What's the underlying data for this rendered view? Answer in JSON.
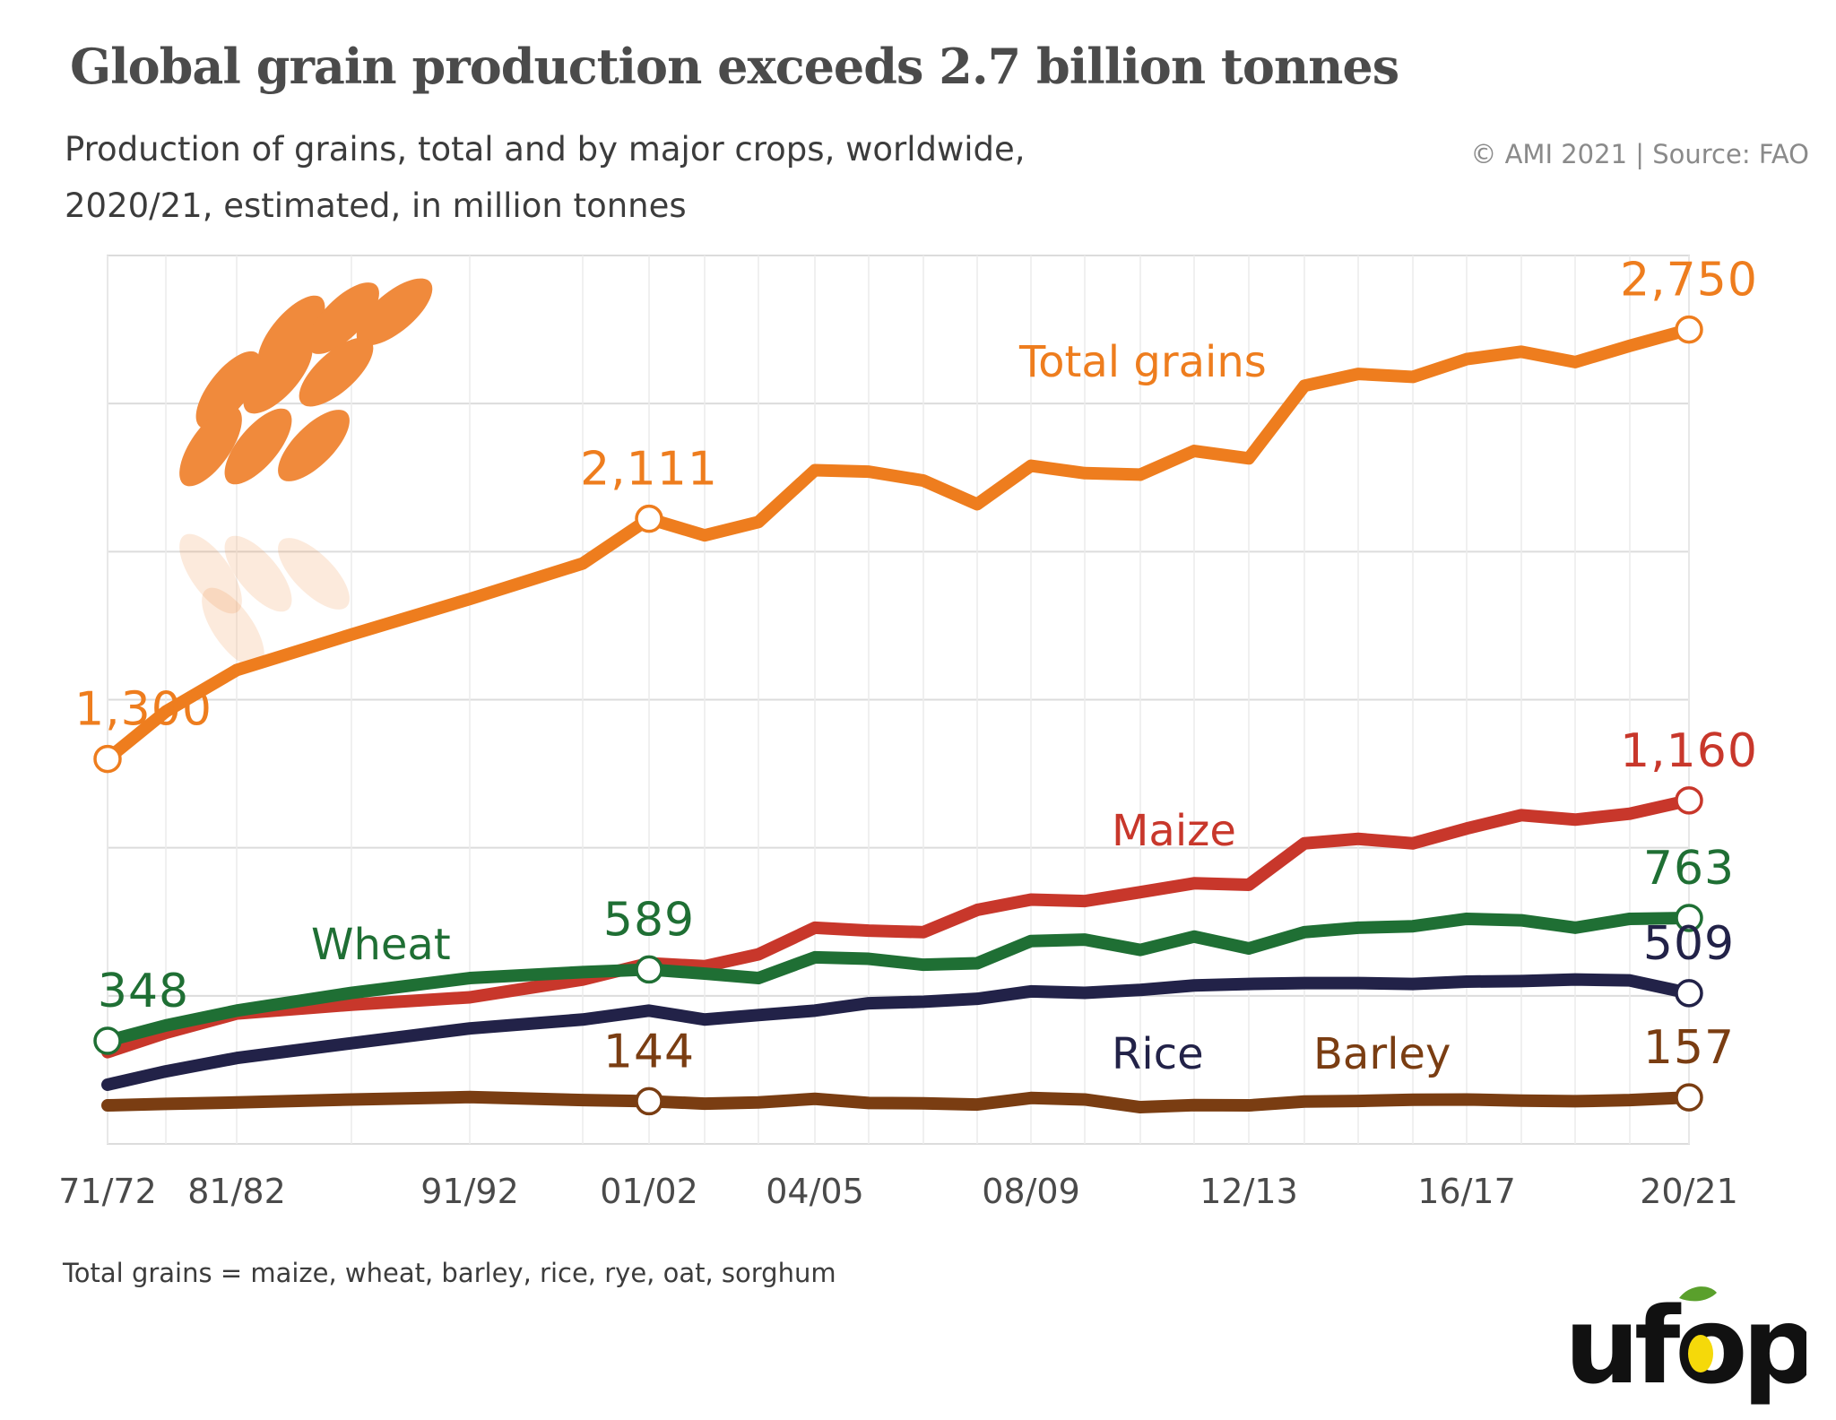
{
  "title": "Global grain production exceeds 2.7 billion tonnes",
  "subtitle_line1": "Production of grains, total and by major crops, worldwide,",
  "subtitle_line2": "2020/21, estimated, in million tonnes",
  "source": "© AMI 2021 | Source: FAO",
  "footnote": "Total grains = maize, wheat, barley, rice, rye, oat, sorghum",
  "logo_text": "ufop",
  "colors": {
    "total": "#ee7d1e",
    "maize": "#c8372b",
    "wheat": "#1f6f34",
    "rice": "#222248",
    "barley": "#7a3d12",
    "grid": "#dcdcdc",
    "logo_dark": "#111111",
    "logo_leaf": "#5aa02c",
    "logo_drop": "#f5d90a"
  },
  "icon": "wheat-ear-icon",
  "chart_data": {
    "type": "line",
    "title": "Global grain production exceeds 2.7 billion tonnes",
    "ylim": [
      0,
      3000
    ],
    "x_tick_labels": [
      "71/72",
      "81/82",
      "91/92",
      "01/02",
      "04/05",
      "08/09",
      "12/13",
      "16/17",
      "20/21"
    ],
    "x": [
      "71/72",
      "76/77",
      "81/82",
      "86/87",
      "91/92",
      "96/97",
      "01/02",
      "02/03",
      "03/04",
      "04/05",
      "05/06",
      "06/07",
      "07/08",
      "08/09",
      "09/10",
      "10/11",
      "11/12",
      "12/13",
      "13/14",
      "14/15",
      "15/16",
      "16/17",
      "17/18",
      "18/19",
      "19/20",
      "20/21"
    ],
    "series": [
      {
        "key": "total",
        "name": "Total grains",
        "values": [
          1300,
          1460,
          1600,
          1720,
          1840,
          1960,
          2111,
          2055,
          2100,
          2275,
          2270,
          2240,
          2160,
          2290,
          2265,
          2260,
          2340,
          2315,
          2560,
          2600,
          2590,
          2650,
          2675,
          2640,
          2695,
          2750
        ],
        "labels": [
          {
            "index": 0,
            "text": "1,300",
            "pos": "above-left"
          },
          {
            "index": 6,
            "text": "2,111",
            "pos": "above"
          },
          {
            "index": 25,
            "text": "2,750",
            "pos": "above"
          }
        ]
      },
      {
        "key": "maize",
        "name": "Maize",
        "values": [
          310,
          375,
          440,
          470,
          495,
          555,
          610,
          600,
          640,
          730,
          720,
          715,
          790,
          825,
          820,
          850,
          880,
          875,
          1015,
          1030,
          1015,
          1065,
          1110,
          1095,
          1115,
          1160
        ],
        "labels": [
          {
            "index": 25,
            "text": "1,160",
            "pos": "above"
          }
        ]
      },
      {
        "key": "wheat",
        "name": "Wheat",
        "values": [
          348,
          400,
          450,
          510,
          560,
          580,
          589,
          575,
          560,
          630,
          625,
          605,
          610,
          685,
          690,
          655,
          700,
          660,
          715,
          730,
          735,
          760,
          755,
          730,
          760,
          763
        ],
        "labels": [
          {
            "index": 0,
            "text": "348",
            "pos": "above-left"
          },
          {
            "index": 6,
            "text": "589",
            "pos": "above"
          },
          {
            "index": 25,
            "text": "763",
            "pos": "above"
          }
        ]
      },
      {
        "key": "rice",
        "name": "Rice",
        "values": [
          200,
          245,
          290,
          340,
          390,
          420,
          450,
          420,
          435,
          450,
          475,
          480,
          490,
          515,
          510,
          520,
          535,
          540,
          543,
          543,
          540,
          548,
          550,
          555,
          552,
          509
        ],
        "labels": [
          {
            "index": 25,
            "text": "509",
            "pos": "above"
          }
        ]
      },
      {
        "key": "barley",
        "name": "Barley",
        "values": [
          130,
          135,
          140,
          150,
          158,
          148,
          144,
          136,
          140,
          152,
          138,
          137,
          133,
          155,
          150,
          124,
          131,
          130,
          143,
          145,
          149,
          150,
          146,
          144,
          148,
          157
        ],
        "labels": [
          {
            "index": 6,
            "text": "144",
            "pos": "above"
          },
          {
            "index": 25,
            "text": "157",
            "pos": "above"
          }
        ]
      }
    ],
    "series_name_labels": [
      {
        "key": "total",
        "text": "Total grains"
      },
      {
        "key": "maize",
        "text": "Maize"
      },
      {
        "key": "wheat",
        "text": "Wheat"
      },
      {
        "key": "rice",
        "text": "Rice"
      },
      {
        "key": "barley",
        "text": "Barley"
      }
    ],
    "grid": true,
    "legend": "inline labels"
  }
}
